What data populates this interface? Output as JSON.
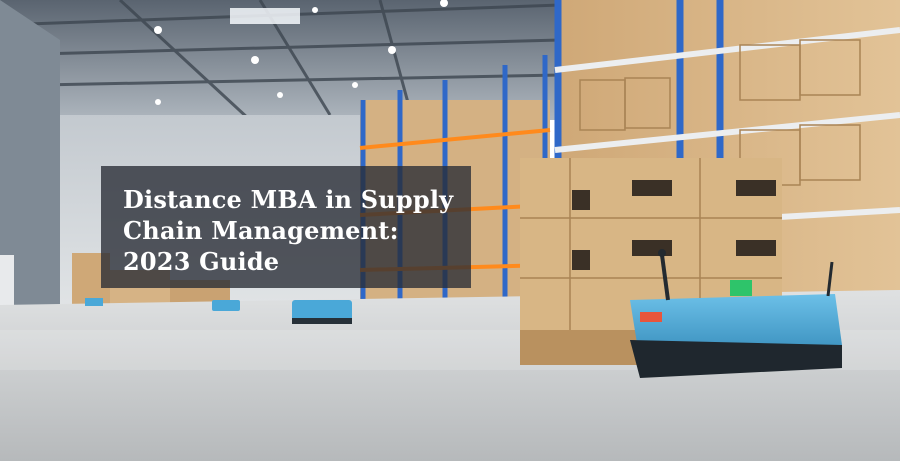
{
  "banner": {
    "title_lines": [
      "Distance MBA in Supply",
      "Chain Management:",
      "2023 Guide"
    ]
  },
  "colors": {
    "rack_blue": "#2f68c8",
    "box_cardboard": "#d9b98a",
    "robot_body": "#4aa8d8",
    "floor": "#c9cbcd",
    "overlay": "#282c34"
  },
  "icons": [
    "warehouse-scene",
    "autonomous-forklift-robot",
    "pallet-boxes",
    "storage-rack"
  ]
}
